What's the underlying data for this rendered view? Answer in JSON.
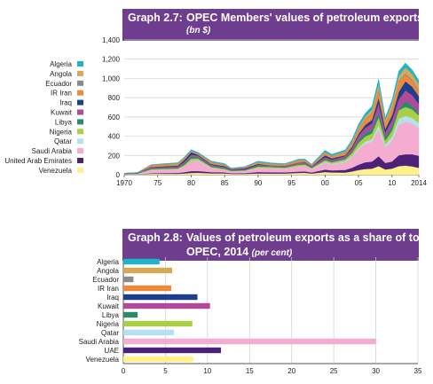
{
  "chart_data": [
    {
      "type": "area",
      "number": "Graph 2.7:",
      "title": "OPEC Members' values of petroleum exports",
      "subtitle": "(bn $)",
      "ylim": [
        0,
        1400
      ],
      "yticks": [
        "0",
        "200",
        "400",
        "600",
        "800",
        "1,000",
        "1,200",
        "1,400"
      ],
      "xticks": [
        "1970",
        "75",
        "80",
        "85",
        "90",
        "95",
        "00",
        "05",
        "10",
        "2014"
      ],
      "x": [
        1970,
        1972,
        1974,
        1976,
        1978,
        1979,
        1980,
        1981,
        1983,
        1985,
        1986,
        1988,
        1990,
        1992,
        1994,
        1996,
        1997,
        1998,
        2000,
        2001,
        2003,
        2004,
        2005,
        2006,
        2007,
        2008,
        2009,
        2010,
        2011,
        2012,
        2013,
        2014
      ],
      "series": [
        {
          "name": "Algeria",
          "color": "#1fb3c9",
          "values": [
            1,
            2,
            5,
            5,
            6,
            9,
            11,
            11,
            10,
            9,
            4,
            6,
            11,
            9,
            7,
            10,
            10,
            7,
            19,
            16,
            18,
            23,
            31,
            34,
            38,
            53,
            28,
            38,
            51,
            48,
            44,
            41
          ]
        },
        {
          "name": "Angola",
          "color": "#d9a856",
          "values": [
            0,
            0,
            1,
            1,
            1,
            1,
            2,
            2,
            2,
            2,
            1,
            2,
            3,
            3,
            3,
            5,
            5,
            3,
            7,
            6,
            9,
            12,
            18,
            25,
            31,
            53,
            30,
            42,
            56,
            62,
            57,
            56
          ]
        },
        {
          "name": "Ecuador",
          "color": "#8a8a8a",
          "values": [
            0,
            0,
            1,
            1,
            1,
            1,
            2,
            1,
            1,
            2,
            1,
            1,
            1,
            1,
            1,
            1,
            1,
            1,
            2,
            2,
            2,
            4,
            5,
            6,
            7,
            10,
            6,
            8,
            12,
            13,
            13,
            12
          ]
        },
        {
          "name": "IR Iran",
          "color": "#ef8a3c",
          "values": [
            2,
            3,
            18,
            21,
            23,
            19,
            13,
            12,
            20,
            13,
            6,
            9,
            15,
            15,
            13,
            19,
            15,
            10,
            24,
            19,
            27,
            37,
            48,
            57,
            66,
            82,
            56,
            72,
            97,
            68,
            61,
            55
          ]
        },
        {
          "name": "Iraq",
          "color": "#1d3f8c",
          "values": [
            1,
            1,
            6,
            8,
            10,
            21,
            26,
            10,
            7,
            10,
            6,
            11,
            10,
            0,
            0,
            0,
            4,
            5,
            20,
            15,
            9,
            17,
            23,
            30,
            38,
            61,
            39,
            51,
            79,
            94,
            89,
            84
          ]
        },
        {
          "name": "Kuwait",
          "color": "#b14a98",
          "values": [
            2,
            3,
            10,
            9,
            10,
            16,
            18,
            14,
            10,
            9,
            6,
            7,
            6,
            6,
            11,
            13,
            13,
            9,
            19,
            16,
            19,
            26,
            42,
            53,
            59,
            83,
            48,
            62,
            96,
            112,
            108,
            97
          ]
        },
        {
          "name": "Libya",
          "color": "#2a8a6e",
          "values": [
            2,
            3,
            8,
            9,
            9,
            15,
            22,
            15,
            12,
            10,
            5,
            5,
            12,
            10,
            8,
            10,
            9,
            6,
            12,
            10,
            14,
            19,
            29,
            38,
            44,
            59,
            35,
            47,
            16,
            60,
            40,
            21
          ]
        },
        {
          "name": "Nigeria",
          "color": "#aacf45",
          "values": [
            1,
            2,
            8,
            9,
            9,
            16,
            24,
            17,
            9,
            12,
            6,
            6,
            13,
            11,
            9,
            15,
            15,
            8,
            18,
            17,
            20,
            32,
            47,
            53,
            58,
            80,
            44,
            62,
            87,
            94,
            89,
            77
          ]
        },
        {
          "name": "Qatar",
          "color": "#b5e1ee",
          "values": [
            0,
            1,
            2,
            2,
            2,
            3,
            5,
            4,
            3,
            3,
            2,
            2,
            3,
            3,
            2,
            3,
            4,
            3,
            8,
            7,
            9,
            12,
            18,
            23,
            28,
            41,
            27,
            43,
            62,
            61,
            55,
            56
          ]
        },
        {
          "name": "Saudi Arabia",
          "color": "#f4acd0",
          "values": [
            3,
            5,
            31,
            34,
            36,
            58,
            101,
            110,
            42,
            22,
            17,
            20,
            40,
            40,
            38,
            53,
            54,
            35,
            72,
            60,
            82,
            110,
            161,
            191,
            206,
            283,
            161,
            215,
            318,
            337,
            322,
            285
          ]
        },
        {
          "name": "United Arab Emirates",
          "color": "#4c2278",
          "values": [
            1,
            1,
            6,
            8,
            9,
            13,
            19,
            19,
            13,
            11,
            7,
            8,
            15,
            13,
            12,
            14,
            15,
            11,
            25,
            22,
            27,
            38,
            56,
            70,
            74,
            102,
            68,
            74,
            112,
            118,
            126,
            126
          ]
        },
        {
          "name": "Venezuela",
          "color": "#fff08a",
          "values": [
            3,
            3,
            9,
            9,
            9,
            13,
            18,
            19,
            14,
            13,
            8,
            8,
            13,
            12,
            12,
            18,
            19,
            12,
            28,
            23,
            22,
            33,
            48,
            59,
            62,
            89,
            54,
            63,
            89,
            94,
            86,
            71
          ]
        }
      ]
    },
    {
      "type": "bar",
      "number": "Graph 2.8:",
      "title": "Values of petroleum exports as a share of total",
      "title_line2": "OPEC, 2014",
      "subtitle": "(per cent)",
      "xlim": [
        0,
        35
      ],
      "xticks": [
        "0",
        "5",
        "10",
        "15",
        "20",
        "25",
        "30",
        "35"
      ],
      "categories": [
        "Algeria",
        "Angola",
        "Ecuador",
        "IR Iran",
        "Iraq",
        "Kuwait",
        "Libya",
        "Nigeria",
        "Qatar",
        "Saudi Arabia",
        "UAE",
        "Venezuela"
      ],
      "values": [
        4.3,
        5.8,
        1.2,
        5.7,
        8.8,
        10.3,
        1.7,
        8.2,
        6.0,
        30.0,
        11.6,
        8.3
      ],
      "colors": [
        "#1fb3c9",
        "#d9a856",
        "#8a8a8a",
        "#ef8a3c",
        "#1d3f8c",
        "#b14a98",
        "#2a8a6e",
        "#aacf45",
        "#b5e1ee",
        "#f4acd0",
        "#4c2278",
        "#fff08a"
      ]
    }
  ]
}
